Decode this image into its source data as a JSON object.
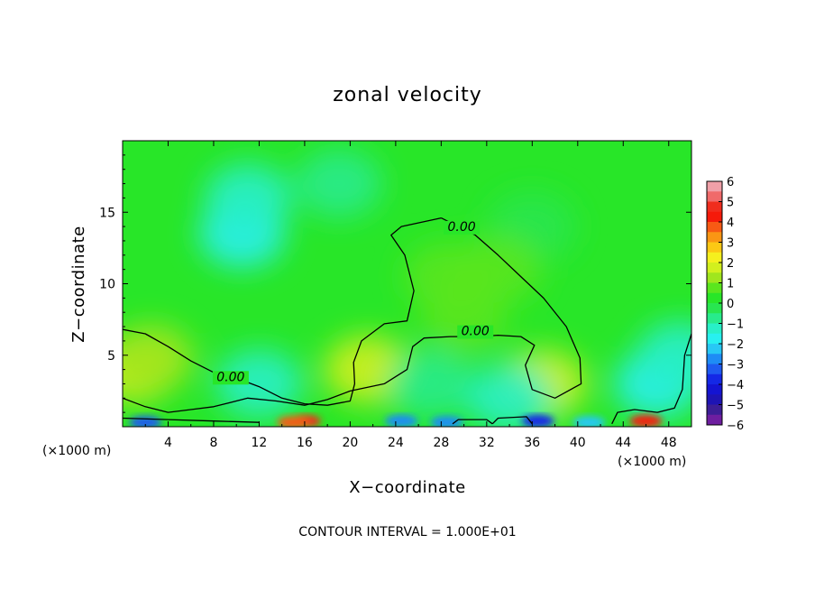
{
  "chart_data": {
    "type": "heatmap",
    "title": "zonal velocity",
    "xlabel": "X−coordinate",
    "ylabel": "Z−coordinate",
    "x_unit_left": "(×1000 m)",
    "x_unit_right": "(×1000 m)",
    "xlim": [
      0,
      50
    ],
    "ylim": [
      0,
      20
    ],
    "x_ticks": [
      "4",
      "8",
      "12",
      "16",
      "20",
      "24",
      "28",
      "32",
      "36",
      "40",
      "44",
      "48"
    ],
    "x_tick_values": [
      4,
      8,
      12,
      16,
      20,
      24,
      28,
      32,
      36,
      40,
      44,
      48
    ],
    "y_ticks": [
      "5",
      "10",
      "15"
    ],
    "y_tick_values": [
      5,
      10,
      15
    ],
    "footer": "CONTOUR INTERVAL = 1.000E+01",
    "colorbar": {
      "range": [
        -6,
        6
      ],
      "ticks": [
        "6",
        "5",
        "4",
        "3",
        "2",
        "1",
        "0",
        "−1",
        "−2",
        "−3",
        "−4",
        "−5",
        "−6"
      ],
      "levels": [
        {
          "from": 5.5,
          "to": 6.0,
          "color": "#f0a0a8"
        },
        {
          "from": 5.0,
          "to": 5.5,
          "color": "#f06a6a"
        },
        {
          "from": 4.5,
          "to": 5.0,
          "color": "#f02d1e"
        },
        {
          "from": 4.0,
          "to": 4.5,
          "color": "#f51a0a"
        },
        {
          "from": 3.5,
          "to": 4.0,
          "color": "#f75a14"
        },
        {
          "from": 3.0,
          "to": 3.5,
          "color": "#fa9614"
        },
        {
          "from": 2.5,
          "to": 3.0,
          "color": "#fcc814"
        },
        {
          "from": 2.0,
          "to": 2.5,
          "color": "#f5f01e"
        },
        {
          "from": 1.5,
          "to": 2.0,
          "color": "#d2f01e"
        },
        {
          "from": 1.0,
          "to": 1.5,
          "color": "#a0e61e"
        },
        {
          "from": 0.5,
          "to": 1.0,
          "color": "#5ae61e"
        },
        {
          "from": 0.0,
          "to": 0.5,
          "color": "#28e628"
        },
        {
          "from": -0.5,
          "to": 0.0,
          "color": "#28e650"
        },
        {
          "from": -1.0,
          "to": -0.5,
          "color": "#28eb8c"
        },
        {
          "from": -1.5,
          "to": -1.0,
          "color": "#28f0c8"
        },
        {
          "from": -2.0,
          "to": -1.5,
          "color": "#28f0f0"
        },
        {
          "from": -2.5,
          "to": -2.0,
          "color": "#28c8f5"
        },
        {
          "from": -3.0,
          "to": -2.5,
          "color": "#1e8cf5"
        },
        {
          "from": -3.5,
          "to": -3.0,
          "color": "#1e5af0"
        },
        {
          "from": -4.0,
          "to": -3.5,
          "color": "#1428e6"
        },
        {
          "from": -4.5,
          "to": -4.0,
          "color": "#1414d2"
        },
        {
          "from": -5.0,
          "to": -4.5,
          "color": "#1e14b4"
        },
        {
          "from": -5.5,
          "to": -5.0,
          "color": "#3c1e96"
        },
        {
          "from": -6.0,
          "to": -5.5,
          "color": "#6e1ea0"
        }
      ]
    },
    "background_value": 0.0,
    "field_features": [
      {
        "x": 10.5,
        "z": 13.5,
        "value": -1.8
      },
      {
        "x": 11,
        "z": 16,
        "value": -1.2
      },
      {
        "x": 19,
        "z": 17,
        "value": -1.0
      },
      {
        "x": 36,
        "z": 14,
        "value": -0.5
      },
      {
        "x": 28.5,
        "z": 10.5,
        "value": 0.9
      },
      {
        "x": 33,
        "z": 11,
        "value": 0.6
      },
      {
        "x": 30,
        "z": 7.5,
        "value": 0.7
      },
      {
        "x": 37,
        "z": 3,
        "value": 1.8
      },
      {
        "x": 21.5,
        "z": 4,
        "value": 1.5
      },
      {
        "x": 1,
        "z": 4,
        "value": 1.5
      },
      {
        "x": 2.5,
        "z": 4.8,
        "value": 1.0
      },
      {
        "x": 12,
        "z": 3,
        "value": -1.3
      },
      {
        "x": 27,
        "z": 3,
        "value": -1.0
      },
      {
        "x": 34,
        "z": 2,
        "value": -1.5
      },
      {
        "x": 47,
        "z": 3,
        "value": -2.0
      },
      {
        "x": 49,
        "z": 5,
        "value": -1.2
      },
      {
        "x": 16,
        "z": 0.4,
        "value": 4.5
      },
      {
        "x": 15,
        "z": 0.3,
        "value": 3.5
      },
      {
        "x": 46,
        "z": 0.4,
        "value": 4.2
      },
      {
        "x": 2,
        "z": 0.3,
        "value": -3.5
      },
      {
        "x": 24.5,
        "z": 0.4,
        "value": -2.8
      },
      {
        "x": 28.5,
        "z": 0.3,
        "value": -3.0
      },
      {
        "x": 36.5,
        "z": 0.4,
        "value": -3.8
      },
      {
        "x": 41,
        "z": 0.3,
        "value": -2.5
      }
    ],
    "contours": [
      {
        "label": "0.00",
        "label_at": [
          9.5,
          3.2
        ],
        "points": [
          [
            0,
            6.8
          ],
          [
            2,
            6.5
          ],
          [
            4,
            5.6
          ],
          [
            6,
            4.6
          ],
          [
            8,
            3.8
          ],
          [
            10,
            3.4
          ],
          [
            12,
            2.8
          ],
          [
            14,
            2.0
          ],
          [
            16,
            1.6
          ],
          [
            18,
            1.5
          ],
          [
            20,
            1.8
          ],
          [
            20.4,
            3.0
          ],
          [
            20.3,
            4.5
          ],
          [
            21,
            6
          ],
          [
            23,
            7.2
          ],
          [
            25,
            7.4
          ],
          [
            25.6,
            9.5
          ],
          [
            24.8,
            12
          ],
          [
            23.6,
            13.4
          ],
          [
            24.5,
            14.0
          ],
          [
            28,
            14.6
          ]
        ]
      },
      {
        "label": "0.00",
        "label_at": [
          29.8,
          13.7
        ],
        "points": [
          [
            28,
            14.6
          ],
          [
            31,
            13.4
          ],
          [
            33,
            12.0
          ],
          [
            35,
            10.5
          ],
          [
            37,
            9.0
          ],
          [
            39,
            7.0
          ],
          [
            40.2,
            4.8
          ],
          [
            40.3,
            3.0
          ],
          [
            38,
            2.0
          ],
          [
            36,
            2.6
          ],
          [
            35.4,
            4.3
          ],
          [
            36.2,
            5.7
          ],
          [
            35,
            6.3
          ],
          [
            33,
            6.4
          ],
          [
            31,
            6.3
          ],
          [
            28.8,
            6.3
          ],
          [
            26.5,
            6.2
          ],
          [
            25.5,
            5.6
          ],
          [
            25,
            4.0
          ],
          [
            23,
            3.0
          ],
          [
            20,
            2.5
          ],
          [
            18,
            1.9
          ],
          [
            16,
            1.5
          ],
          [
            13.5,
            1.8
          ],
          [
            11,
            2.0
          ],
          [
            8,
            1.4
          ],
          [
            6,
            1.2
          ],
          [
            4,
            1.0
          ],
          [
            2,
            1.4
          ],
          [
            0,
            2.0
          ]
        ]
      },
      {
        "label": "0.00",
        "label_at": [
          31,
          6.4
        ],
        "points": []
      },
      {
        "label": "",
        "points": [
          [
            43,
            0.2
          ],
          [
            43.5,
            1.0
          ],
          [
            45,
            1.2
          ],
          [
            47,
            1.0
          ],
          [
            48.5,
            1.3
          ],
          [
            49.2,
            2.6
          ],
          [
            49.4,
            5.0
          ],
          [
            50,
            6.5
          ]
        ]
      },
      {
        "label": "",
        "points": [
          [
            0,
            0.6
          ],
          [
            4,
            0.5
          ],
          [
            8,
            0.4
          ],
          [
            12,
            0.3
          ]
        ]
      },
      {
        "label": "",
        "points": [
          [
            29,
            0.2
          ],
          [
            29.5,
            0.5
          ],
          [
            32,
            0.5
          ],
          [
            32.5,
            0.2
          ]
        ]
      },
      {
        "label": "",
        "points": [
          [
            32.5,
            0.2
          ],
          [
            33,
            0.6
          ],
          [
            35.5,
            0.7
          ],
          [
            36,
            0.2
          ]
        ]
      }
    ]
  }
}
